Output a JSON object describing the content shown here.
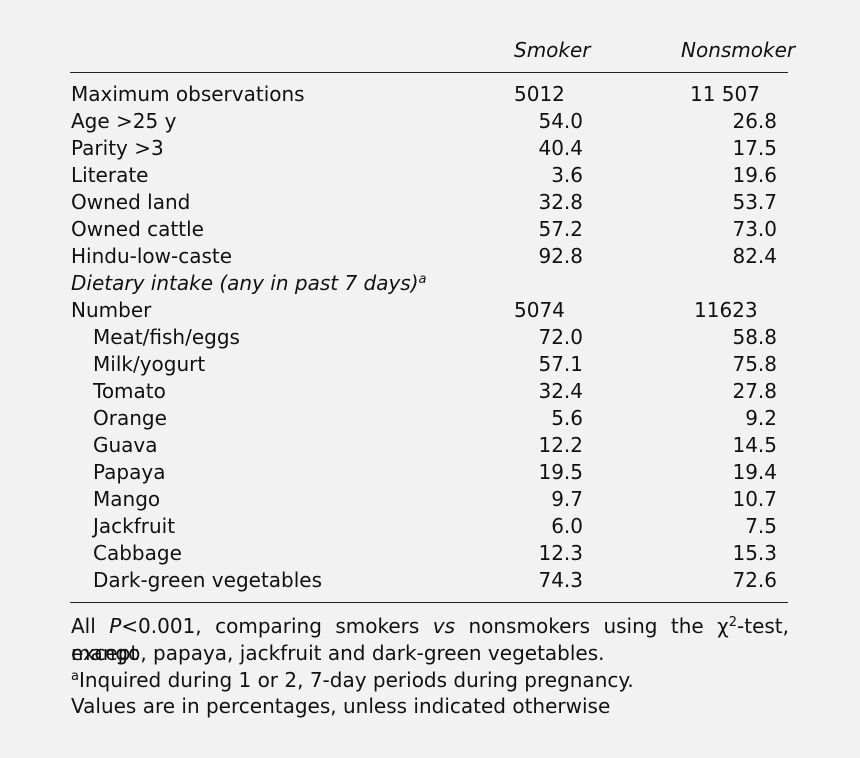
{
  "header": {
    "col_smoker": "Smoker",
    "col_nonsmoker": "Nonsmoker"
  },
  "rows": [
    {
      "label": "Maximum observations",
      "smoker": "5012",
      "nonsmoker": "11 507",
      "style": "left-vals"
    },
    {
      "label": "Age >25 y",
      "smoker": "54.0",
      "nonsmoker": "26.8"
    },
    {
      "label": "Parity >3",
      "smoker": "40.4",
      "nonsmoker": "17.5"
    },
    {
      "label": "Literate",
      "smoker": "3.6",
      "nonsmoker": "19.6"
    },
    {
      "label": "Owned land",
      "smoker": "32.8",
      "nonsmoker": "53.7"
    },
    {
      "label": "Owned cattle",
      "smoker": "57.2",
      "nonsmoker": "73.0"
    },
    {
      "label": "Hindu-low-caste",
      "smoker": "92.8",
      "nonsmoker": "82.4"
    },
    {
      "label": "Dietary intake (any in past 7 days)",
      "sup": "a",
      "smoker": "",
      "nonsmoker": "",
      "style": "italic"
    },
    {
      "label": "Number",
      "smoker": "5074",
      "nonsmoker": "11623",
      "style": "left-vals n2"
    },
    {
      "label": "Meat/fish/eggs",
      "smoker": "72.0",
      "nonsmoker": "58.8",
      "style": "indent"
    },
    {
      "label": "Milk/yogurt",
      "smoker": "57.1",
      "nonsmoker": "75.8",
      "style": "indent"
    },
    {
      "label": "Tomato",
      "smoker": "32.4",
      "nonsmoker": "27.8",
      "style": "indent"
    },
    {
      "label": "Orange",
      "smoker": "5.6",
      "nonsmoker": "9.2",
      "style": "indent"
    },
    {
      "label": "Guava",
      "smoker": "12.2",
      "nonsmoker": "14.5",
      "style": "indent"
    },
    {
      "label": "Papaya",
      "smoker": "19.5",
      "nonsmoker": "19.4",
      "style": "indent"
    },
    {
      "label": "Mango",
      "smoker": "9.7",
      "nonsmoker": "10.7",
      "style": "indent"
    },
    {
      "label": "Jackfruit",
      "smoker": "6.0",
      "nonsmoker": "7.5",
      "style": "indent"
    },
    {
      "label": "Cabbage",
      "smoker": "12.3",
      "nonsmoker": "15.3",
      "style": "indent"
    },
    {
      "label": "Dark-green vegetables",
      "smoker": "74.3",
      "nonsmoker": "72.6",
      "style": "indent"
    }
  ],
  "footnotes": {
    "line1_a": "All ",
    "line1_p": "P",
    "line1_b": "<0.001, comparing smokers ",
    "line1_vs": "vs",
    "line1_c": " nonsmokers using the χ",
    "line1_sup": "2",
    "line1_d": "-test, except",
    "line2": "mango, papaya, jackfruit and dark-green vegetables.",
    "line3_sup": "a",
    "line3": "Inquired during 1 or 2, 7-day periods during pregnancy.",
    "line4": "Values are in percentages, unless indicated otherwise"
  }
}
